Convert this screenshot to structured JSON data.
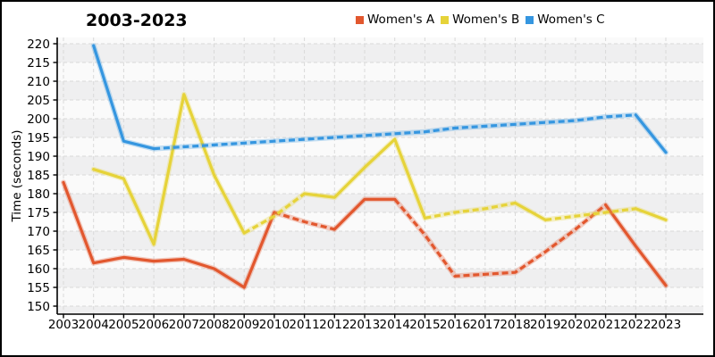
{
  "chart_data": {
    "type": "line",
    "title": "2003-2023",
    "xlabel": "",
    "ylabel": "Time (seconds)",
    "x": [
      2003,
      2004,
      2005,
      2006,
      2007,
      2008,
      2009,
      2010,
      2011,
      2012,
      2013,
      2014,
      2015,
      2016,
      2017,
      2018,
      2019,
      2020,
      2021,
      2022,
      2023
    ],
    "y_ticks": [
      150,
      155,
      160,
      165,
      170,
      175,
      180,
      185,
      190,
      195,
      200,
      205,
      210,
      215,
      220
    ],
    "ylim": [
      148,
      222
    ],
    "grid": true,
    "grid_style": "dashed",
    "background_bands": true,
    "legend_position": "top-right",
    "series": [
      {
        "name": "Women's A",
        "color": "#e2572e",
        "start_year": 2003,
        "values": [
          183,
          161.5,
          163,
          162,
          162.5,
          160,
          155,
          175,
          172.5,
          170.5,
          178.5,
          178.5,
          169,
          158,
          158.5,
          159,
          164.5,
          170.5,
          177,
          166,
          155.5
        ],
        "dashed_ranges": [
          [
            2010,
            2012
          ],
          [
            2014,
            2021
          ]
        ]
      },
      {
        "name": "Women's B",
        "color": "#e6d339",
        "start_year": 2004,
        "values": [
          186.5,
          184,
          166.5,
          206.5,
          185,
          169.5,
          174,
          180,
          179,
          187,
          194.5,
          173.5,
          175,
          176,
          177.5,
          173,
          174,
          175,
          176,
          173
        ],
        "dashed_ranges": [
          [
            2009,
            2011
          ],
          [
            2015,
            2018
          ],
          [
            2019,
            2022
          ]
        ]
      },
      {
        "name": "Women's C",
        "color": "#3596e0",
        "start_year": 2004,
        "values": [
          219.5,
          194,
          192,
          192.5,
          193,
          193.5,
          194,
          194.5,
          195,
          195.5,
          196,
          196.5,
          197.5,
          198,
          198.5,
          199,
          199.5,
          200.5,
          201,
          191
        ],
        "dashed_ranges": [
          [
            2006,
            2022
          ]
        ]
      }
    ],
    "colors": {
      "band_gray": "#efeff0",
      "band_light": "#fafafa",
      "gridline": "#d9d9d9",
      "axis": "#000000"
    }
  }
}
